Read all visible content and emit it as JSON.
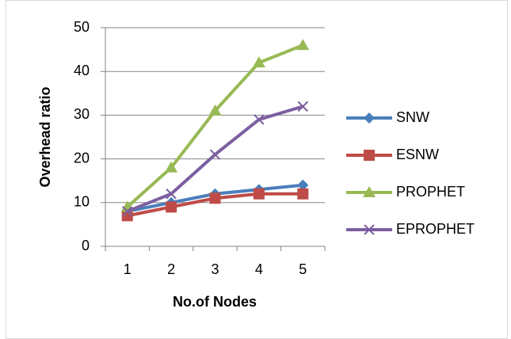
{
  "chart_data": {
    "type": "line",
    "categories": [
      "1",
      "2",
      "3",
      "4",
      "5"
    ],
    "series": [
      {
        "name": "SNW",
        "color": "#4a7ebb",
        "marker": "diamond",
        "values": [
          8,
          10,
          12,
          13,
          14
        ]
      },
      {
        "name": "ESNW",
        "color": "#be4b48",
        "marker": "square",
        "values": [
          7,
          9,
          11,
          12,
          12
        ]
      },
      {
        "name": "PROPHET",
        "color": "#98b954",
        "marker": "triangle",
        "values": [
          9,
          18,
          31,
          42,
          46
        ]
      },
      {
        "name": "EPROPHET",
        "color": "#7d5fa0",
        "marker": "x",
        "values": [
          8,
          12,
          21,
          29,
          32
        ]
      }
    ],
    "ylim": [
      0,
      50
    ],
    "yticks": [
      0,
      10,
      20,
      30,
      40,
      50
    ],
    "ylabel": "Overhead ratio",
    "xlabel": "No.of Nodes",
    "grid": true,
    "legend": "right"
  }
}
